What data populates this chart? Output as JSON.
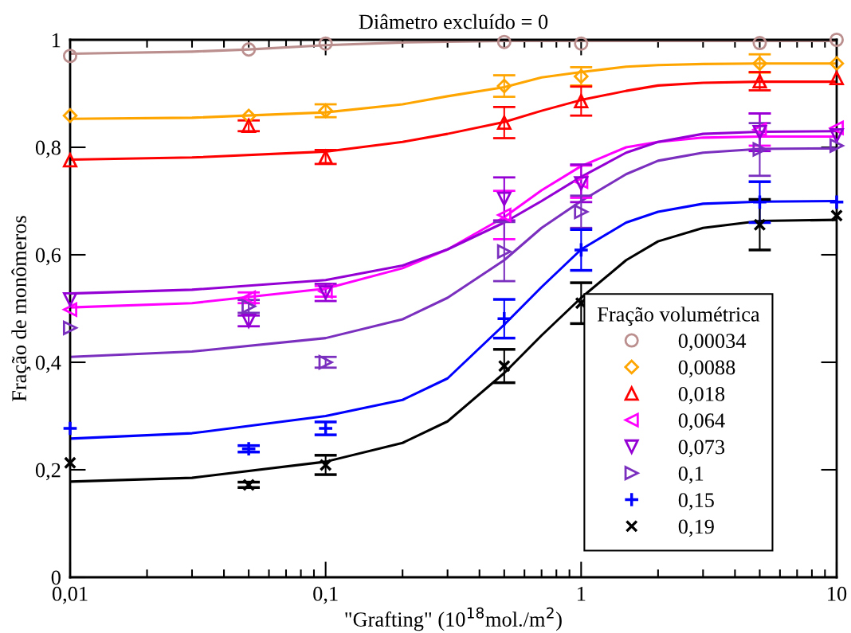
{
  "chart_data": {
    "type": "scatter",
    "title": "Diâmetro excluído = 0",
    "xlabel": "\"Grafting\" (10$^{18}$mol./m$^{2}$)",
    "ylabel": "Fração de monômeros",
    "legend_title": "Fração volumétrica",
    "legend": "bottom right",
    "log": "x",
    "grid": false,
    "xlim": [
      0.01,
      10
    ],
    "xticks": [
      {
        "value": 0.01,
        "label": "0,01"
      },
      {
        "value": 0.1,
        "label": "0,1"
      },
      1,
      10
    ],
    "ylim": [
      0,
      1
    ],
    "yticks": [
      0,
      {
        "value": 0.2,
        "label": "0,2"
      },
      {
        "value": 0.4,
        "label": "0,4"
      },
      {
        "value": 0.6,
        "label": "0,6"
      },
      {
        "value": 0.8,
        "label": "0,8"
      },
      1
    ],
    "x": [
      0.01,
      0.05,
      0.1,
      0.5,
      1,
      5,
      10
    ],
    "series": [
      {
        "name": "0,00034",
        "color": "#bc8f8f",
        "marker": "circle",
        "values": [
          0.97,
          0.982,
          0.993,
          0.996,
          0.993,
          0.994,
          1.0
        ]
      },
      {
        "name": "0,0088",
        "color": "#ffa500",
        "marker": "diamond",
        "values": [
          0.859,
          0.858,
          0.868,
          0.914,
          0.932,
          0.956,
          0.956
        ],
        "errors": [
          null,
          null,
          0.012,
          0.02,
          0.017,
          0.017,
          null
        ]
      },
      {
        "name": "0,018",
        "color": "#ff0000",
        "marker": "triangle",
        "values": [
          0.776,
          0.84,
          0.782,
          0.846,
          0.886,
          0.923,
          0.929
        ],
        "errors": [
          null,
          0.01,
          0.013,
          0.029,
          0.027,
          0.017,
          null
        ]
      },
      {
        "name": "0,064",
        "color": "#ff00ff",
        "marker": "triangle-left",
        "values": [
          0.498,
          0.52,
          0.532,
          0.674,
          0.736,
          0.833,
          0.836
        ],
        "errors": [
          null,
          0.01,
          0.01,
          0.045,
          0.03,
          0.03,
          null
        ]
      },
      {
        "name": "0,073",
        "color": "#9400d3",
        "marker": "triangle-down",
        "values": [
          0.517,
          0.477,
          0.53,
          0.704,
          0.733,
          0.828,
          0.822
        ],
        "errors": [
          null,
          0.01,
          0.016,
          0.04,
          0.035,
          0.035,
          null
        ]
      },
      {
        "name": "0,1",
        "color": "#7b2fbe",
        "marker": "triangle-right",
        "values": [
          0.464,
          0.504,
          0.4,
          0.606,
          0.68,
          0.796,
          0.803
        ],
        "errors": [
          null,
          0.012,
          0.01,
          0.055,
          0.03,
          0.049,
          null
        ]
      },
      {
        "name": "0,15",
        "color": "#0000ff",
        "marker": "plus",
        "values": [
          0.277,
          0.239,
          0.277,
          0.481,
          0.609,
          0.698,
          0.698
        ],
        "errors": [
          null,
          0.006,
          0.012,
          0.036,
          0.038,
          0.038,
          null
        ]
      },
      {
        "name": "0,19",
        "color": "#000000",
        "marker": "cross",
        "values": [
          0.213,
          0.172,
          0.209,
          0.393,
          0.51,
          0.656,
          0.673
        ],
        "errors": [
          null,
          0.005,
          0.018,
          0.031,
          0.038,
          0.047,
          null
        ]
      },
      {
        "type": "line",
        "color": "#bc8f8f",
        "x": [
          0.01,
          0.03,
          0.05,
          0.1,
          0.2,
          0.5,
          1,
          10
        ],
        "values": [
          0.974,
          0.978,
          0.982,
          0.99,
          0.995,
          0.998,
          0.998,
          0.998
        ]
      },
      {
        "type": "line",
        "color": "#ffa500",
        "x": [
          0.01,
          0.03,
          0.1,
          0.2,
          0.3,
          0.5,
          0.7,
          1,
          1.5,
          2,
          3,
          5,
          10
        ],
        "values": [
          0.853,
          0.855,
          0.865,
          0.88,
          0.895,
          0.912,
          0.93,
          0.94,
          0.95,
          0.953,
          0.955,
          0.956,
          0.956
        ]
      },
      {
        "type": "line",
        "color": "#ff0000",
        "x": [
          0.01,
          0.03,
          0.1,
          0.2,
          0.3,
          0.5,
          0.7,
          1,
          1.5,
          2,
          3,
          5,
          10
        ],
        "values": [
          0.777,
          0.781,
          0.792,
          0.81,
          0.825,
          0.847,
          0.868,
          0.888,
          0.905,
          0.915,
          0.92,
          0.922,
          0.922
        ]
      },
      {
        "type": "line",
        "color": "#ff00ff",
        "x": [
          0.01,
          0.03,
          0.1,
          0.2,
          0.3,
          0.5,
          0.7,
          1,
          1.5,
          2,
          3,
          5,
          10
        ],
        "values": [
          0.502,
          0.51,
          0.537,
          0.575,
          0.61,
          0.67,
          0.72,
          0.765,
          0.8,
          0.81,
          0.818,
          0.82,
          0.82
        ]
      },
      {
        "type": "line",
        "color": "#9400d3",
        "x": [
          0.01,
          0.03,
          0.1,
          0.2,
          0.3,
          0.5,
          0.7,
          1,
          1.5,
          2,
          3,
          5,
          10
        ],
        "values": [
          0.528,
          0.535,
          0.553,
          0.58,
          0.61,
          0.66,
          0.7,
          0.745,
          0.79,
          0.81,
          0.825,
          0.829,
          0.83
        ]
      },
      {
        "type": "line",
        "color": "#7b2fbe",
        "x": [
          0.01,
          0.03,
          0.1,
          0.2,
          0.3,
          0.5,
          0.7,
          1,
          1.5,
          2,
          3,
          5,
          10
        ],
        "values": [
          0.41,
          0.42,
          0.445,
          0.48,
          0.52,
          0.59,
          0.65,
          0.7,
          0.75,
          0.775,
          0.79,
          0.797,
          0.798
        ]
      },
      {
        "type": "line",
        "color": "#0000ff",
        "x": [
          0.01,
          0.03,
          0.1,
          0.2,
          0.3,
          0.5,
          0.7,
          1,
          1.5,
          2,
          3,
          5,
          10
        ],
        "values": [
          0.258,
          0.268,
          0.3,
          0.33,
          0.37,
          0.47,
          0.54,
          0.61,
          0.66,
          0.68,
          0.695,
          0.699,
          0.7
        ]
      },
      {
        "type": "line",
        "color": "#000000",
        "x": [
          0.01,
          0.03,
          0.1,
          0.2,
          0.3,
          0.5,
          0.7,
          1,
          1.5,
          2,
          3,
          5,
          10
        ],
        "values": [
          0.178,
          0.185,
          0.215,
          0.25,
          0.29,
          0.38,
          0.45,
          0.52,
          0.59,
          0.625,
          0.65,
          0.663,
          0.665
        ]
      }
    ]
  }
}
